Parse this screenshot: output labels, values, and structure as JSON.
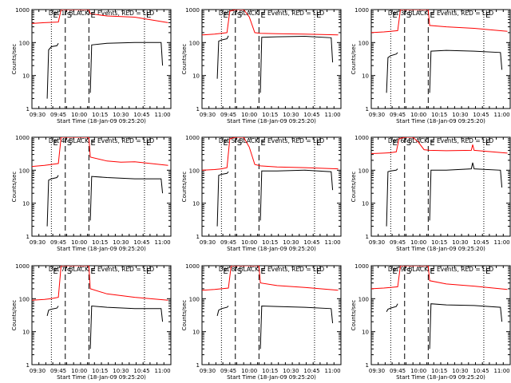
{
  "chart_data": [
    {
      "type": "line",
      "title": "Det 1f BLACK = Events, RED = LLD",
      "xlabel": "Start Time (18-Jan-09 09:25:20)",
      "ylabel": "Counts/sec",
      "yscale": "log",
      "ylim": [
        1,
        1000
      ],
      "x_range": [
        "09:26",
        "11:06"
      ],
      "x_ticks": [
        "09:30",
        "09:45",
        "10:00",
        "10:15",
        "10:30",
        "10:45",
        "11:00"
      ],
      "y_ticks": [
        "1",
        "10",
        "100",
        "1000"
      ],
      "markers": [
        {
          "label": "E",
          "time": "09:40",
          "style": "dotted"
        },
        {
          "label": "S",
          "time": "09:50",
          "style": "dashed"
        },
        {
          "label": "E",
          "time": "10:07",
          "style": "dashed"
        },
        {
          "label": "E",
          "time": "10:47",
          "style": "dotted"
        }
      ],
      "series": [
        {
          "color": "#ff0000",
          "x": [
            "09:26",
            "09:35",
            "09:40",
            "09:45",
            "09:47",
            "09:50",
            "10:07",
            "10:08",
            "10:20",
            "10:40",
            "11:04"
          ],
          "y": [
            380,
            400,
            410,
            420,
            1000,
            1000,
            1000,
            750,
            640,
            590,
            400
          ]
        },
        {
          "color": "#000000",
          "x": [
            "09:37",
            "09:38",
            "09:40",
            "09:44",
            "09:45",
            "09:50",
            "10:08",
            "10:09",
            "10:20",
            "10:40",
            "10:59",
            "11:00"
          ],
          "y": [
            2,
            60,
            75,
            80,
            95,
            null,
            3,
            85,
            95,
            100,
            100,
            20
          ]
        }
      ]
    },
    {
      "type": "line",
      "title": "Det 2f BLACK = Events, RED = LLD",
      "xlabel": "Start Time (18-Jan-09 09:25:20)",
      "ylabel": "Counts/sec",
      "yscale": "log",
      "ylim": [
        1,
        1000
      ],
      "x_range": [
        "09:26",
        "11:06"
      ],
      "x_ticks": [
        "09:30",
        "09:45",
        "10:00",
        "10:15",
        "10:30",
        "10:45",
        "11:00"
      ],
      "y_ticks": [
        "1",
        "10",
        "100",
        "1000"
      ],
      "markers": [
        {
          "label": "E",
          "time": "09:40",
          "style": "dotted"
        },
        {
          "label": "S",
          "time": "09:50",
          "style": "dashed"
        },
        {
          "label": "E",
          "time": "10:07",
          "style": "dashed"
        },
        {
          "label": "E",
          "time": "10:47",
          "style": "dotted"
        }
      ],
      "series": [
        {
          "color": "#ff0000",
          "x": [
            "09:26",
            "09:35",
            "09:40",
            "09:44",
            "09:46",
            "09:50",
            "09:56",
            "10:00",
            "10:04",
            "10:08",
            "10:20",
            "10:40",
            "11:04"
          ],
          "y": [
            170,
            180,
            190,
            200,
            900,
            1000,
            1000,
            600,
            200,
            190,
            185,
            180,
            170
          ]
        },
        {
          "color": "#000000",
          "x": [
            "09:37",
            "09:38",
            "09:40",
            "09:44",
            "09:45",
            "09:50",
            "10:08",
            "10:09",
            "10:20",
            "10:40",
            "10:59",
            "11:00"
          ],
          "y": [
            8,
            110,
            120,
            130,
            160,
            null,
            3,
            145,
            150,
            155,
            140,
            25
          ]
        }
      ]
    },
    {
      "type": "line",
      "title": "Det 3f BLACK = Events, RED = LLD",
      "xlabel": "Start Time (18-Jan-09 09:25:20)",
      "ylabel": "Counts/sec",
      "yscale": "log",
      "ylim": [
        1,
        1000
      ],
      "x_range": [
        "09:26",
        "11:06"
      ],
      "x_ticks": [
        "09:30",
        "09:45",
        "10:00",
        "10:15",
        "10:30",
        "10:45",
        "11:00"
      ],
      "y_ticks": [
        "1",
        "10",
        "100",
        "1000"
      ],
      "markers": [
        {
          "label": "E",
          "time": "09:40",
          "style": "dotted"
        },
        {
          "label": "S",
          "time": "09:50",
          "style": "dashed"
        },
        {
          "label": "E",
          "time": "10:07",
          "style": "dashed"
        },
        {
          "label": "E",
          "time": "10:47",
          "style": "dotted"
        }
      ],
      "series": [
        {
          "color": "#ff0000",
          "x": [
            "09:26",
            "09:35",
            "09:40",
            "09:45",
            "09:47",
            "09:50",
            "10:07",
            "10:08",
            "10:20",
            "10:40",
            "11:04"
          ],
          "y": [
            200,
            210,
            220,
            230,
            1000,
            1000,
            1000,
            330,
            300,
            270,
            220
          ]
        },
        {
          "color": "#000000",
          "x": [
            "09:37",
            "09:38",
            "09:40",
            "09:44",
            "09:45",
            "09:50",
            "10:08",
            "10:09",
            "10:20",
            "10:40",
            "10:59",
            "11:00"
          ],
          "y": [
            3,
            35,
            40,
            45,
            50,
            null,
            3,
            55,
            58,
            55,
            50,
            15
          ]
        }
      ]
    },
    {
      "type": "line",
      "title": "Det 4f BLACK = Events, RED = LLD",
      "xlabel": "Start Time (18-Jan-09 09:25:20)",
      "ylabel": "Counts/sec",
      "yscale": "log",
      "ylim": [
        1,
        1000
      ],
      "x_range": [
        "09:26",
        "11:06"
      ],
      "x_ticks": [
        "09:30",
        "09:45",
        "10:00",
        "10:15",
        "10:30",
        "10:45",
        "11:00"
      ],
      "y_ticks": [
        "1",
        "10",
        "100",
        "1000"
      ],
      "markers": [
        {
          "label": "E",
          "time": "09:40",
          "style": "dotted"
        },
        {
          "label": "S",
          "time": "09:50",
          "style": "dashed"
        },
        {
          "label": "E",
          "time": "10:07",
          "style": "dashed"
        },
        {
          "label": "E",
          "time": "10:47",
          "style": "dotted"
        }
      ],
      "series": [
        {
          "color": "#ff0000",
          "x": [
            "09:26",
            "09:35",
            "09:40",
            "09:45",
            "09:47",
            "09:50",
            "10:07",
            "10:08",
            "10:20",
            "10:30",
            "10:40",
            "11:04"
          ],
          "y": [
            130,
            140,
            150,
            160,
            1000,
            1000,
            1000,
            250,
            190,
            175,
            180,
            140
          ]
        },
        {
          "color": "#000000",
          "x": [
            "09:37",
            "09:38",
            "09:40",
            "09:44",
            "09:45",
            "09:50",
            "10:08",
            "10:09",
            "10:20",
            "10:40",
            "10:59",
            "11:00"
          ],
          "y": [
            2,
            50,
            55,
            60,
            70,
            null,
            3,
            65,
            60,
            55,
            55,
            20
          ]
        }
      ]
    },
    {
      "type": "line",
      "title": "Det 5f BLACK = Events, RED = LLD",
      "xlabel": "Start Time (18-Jan-09 09:25:20)",
      "ylabel": "Counts/sec",
      "yscale": "log",
      "ylim": [
        1,
        1000
      ],
      "x_range": [
        "09:26",
        "11:06"
      ],
      "x_ticks": [
        "09:30",
        "09:45",
        "10:00",
        "10:15",
        "10:30",
        "10:45",
        "11:00"
      ],
      "y_ticks": [
        "1",
        "10",
        "100",
        "1000"
      ],
      "markers": [
        {
          "label": "E",
          "time": "09:40",
          "style": "dotted"
        },
        {
          "label": "S",
          "time": "09:50",
          "style": "dashed"
        },
        {
          "label": "E",
          "time": "10:07",
          "style": "dashed"
        },
        {
          "label": "E",
          "time": "10:47",
          "style": "dotted"
        }
      ],
      "series": [
        {
          "color": "#ff0000",
          "x": [
            "09:26",
            "09:35",
            "09:40",
            "09:44",
            "09:46",
            "09:50",
            "09:56",
            "10:00",
            "10:04",
            "10:08",
            "10:20",
            "10:40",
            "11:04"
          ],
          "y": [
            100,
            105,
            110,
            120,
            900,
            1000,
            1000,
            500,
            150,
            135,
            125,
            120,
            110
          ]
        },
        {
          "color": "#000000",
          "x": [
            "09:37",
            "09:38",
            "09:40",
            "09:44",
            "09:45",
            "09:50",
            "10:08",
            "10:09",
            "10:20",
            "10:40",
            "10:59",
            "11:00"
          ],
          "y": [
            2,
            70,
            75,
            80,
            90,
            null,
            3,
            95,
            95,
            100,
            90,
            25
          ]
        }
      ]
    },
    {
      "type": "line",
      "title": "Det 6f BLACK = Events, RED = LLD",
      "xlabel": "Start Time (18-Jan-09 09:25:20)",
      "ylabel": "Counts/sec",
      "yscale": "log",
      "ylim": [
        1,
        1000
      ],
      "x_range": [
        "09:26",
        "11:06"
      ],
      "x_ticks": [
        "09:30",
        "09:45",
        "10:00",
        "10:15",
        "10:30",
        "10:45",
        "11:00"
      ],
      "y_ticks": [
        "1",
        "10",
        "100",
        "1000"
      ],
      "markers": [
        {
          "label": "E",
          "time": "09:40",
          "style": "dotted"
        },
        {
          "label": "S",
          "time": "09:50",
          "style": "dashed"
        },
        {
          "label": "E",
          "time": "10:07",
          "style": "dashed"
        },
        {
          "label": "E",
          "time": "10:47",
          "style": "dotted"
        }
      ],
      "series": [
        {
          "color": "#ff0000",
          "x": [
            "09:26",
            "09:35",
            "09:40",
            "09:44",
            "09:46",
            "09:50",
            "09:56",
            "10:00",
            "10:04",
            "10:08",
            "10:20",
            "10:38",
            "10:39",
            "10:40",
            "11:04"
          ],
          "y": [
            320,
            330,
            340,
            360,
            900,
            1000,
            1000,
            700,
            420,
            400,
            390,
            400,
            600,
            400,
            330
          ]
        },
        {
          "color": "#000000",
          "x": [
            "09:37",
            "09:38",
            "09:40",
            "09:44",
            "09:45",
            "09:50",
            "10:08",
            "10:09",
            "10:20",
            "10:38",
            "10:39",
            "10:40",
            "10:59",
            "11:00"
          ],
          "y": [
            2,
            90,
            95,
            100,
            110,
            null,
            3,
            100,
            100,
            110,
            170,
            110,
            100,
            30
          ]
        }
      ]
    },
    {
      "type": "line",
      "title": "Det 7f BLACK = Events, RED = LLD",
      "xlabel": "Start Time (18-Jan-09 09:25:20)",
      "ylabel": "Counts/sec",
      "yscale": "log",
      "ylim": [
        1,
        1000
      ],
      "x_range": [
        "09:26",
        "11:06"
      ],
      "x_ticks": [
        "09:30",
        "09:45",
        "10:00",
        "10:15",
        "10:30",
        "10:45",
        "11:00"
      ],
      "y_ticks": [
        "1",
        "10",
        "100",
        "1000"
      ],
      "markers": [
        {
          "label": "E",
          "time": "09:40",
          "style": "dotted"
        },
        {
          "label": "S",
          "time": "09:50",
          "style": "dashed"
        },
        {
          "label": "E",
          "time": "10:07",
          "style": "dashed"
        },
        {
          "label": "E",
          "time": "10:47",
          "style": "dotted"
        }
      ],
      "series": [
        {
          "color": "#ff0000",
          "x": [
            "09:26",
            "09:35",
            "09:40",
            "09:45",
            "09:47",
            "09:50",
            "10:07",
            "10:08",
            "10:20",
            "10:40",
            "11:04"
          ],
          "y": [
            90,
            95,
            100,
            110,
            1000,
            1000,
            1000,
            200,
            140,
            110,
            90
          ]
        },
        {
          "color": "#000000",
          "x": [
            "09:37",
            "09:38",
            "09:40",
            "09:44",
            "09:45",
            "09:50",
            "10:08",
            "10:09",
            "10:20",
            "10:40",
            "10:59",
            "11:00"
          ],
          "y": [
            30,
            45,
            48,
            52,
            60,
            null,
            3,
            60,
            55,
            50,
            50,
            20
          ]
        }
      ]
    },
    {
      "type": "line",
      "title": "Det 8f BLACK = Events, RED = LLD",
      "xlabel": "Start Time (18-Jan-09 09:25:20)",
      "ylabel": "Counts/sec",
      "yscale": "log",
      "ylim": [
        1,
        1000
      ],
      "x_range": [
        "09:26",
        "11:06"
      ],
      "x_ticks": [
        "09:30",
        "09:45",
        "10:00",
        "10:15",
        "10:30",
        "10:45",
        "11:00"
      ],
      "y_ticks": [
        "1",
        "10",
        "100",
        "1000"
      ],
      "markers": [
        {
          "label": "E",
          "time": "09:40",
          "style": "dotted"
        },
        {
          "label": "S",
          "time": "09:50",
          "style": "dashed"
        },
        {
          "label": "E",
          "time": "10:07",
          "style": "dashed"
        },
        {
          "label": "E",
          "time": "10:47",
          "style": "dotted"
        }
      ],
      "series": [
        {
          "color": "#ff0000",
          "x": [
            "09:26",
            "09:35",
            "09:40",
            "09:45",
            "09:47",
            "09:50",
            "10:07",
            "10:08",
            "10:20",
            "10:40",
            "11:04"
          ],
          "y": [
            180,
            190,
            200,
            210,
            1000,
            1000,
            1000,
            300,
            250,
            220,
            180
          ]
        },
        {
          "color": "#000000",
          "x": [
            "09:37",
            "09:38",
            "09:40",
            "09:44",
            "09:45",
            "09:50",
            "10:08",
            "10:09",
            "10:20",
            "10:40",
            "10:59",
            "11:00"
          ],
          "y": [
            30,
            45,
            50,
            55,
            60,
            null,
            3,
            60,
            58,
            55,
            50,
            18
          ]
        }
      ]
    },
    {
      "type": "line",
      "title": "Det 9f BLACK = Events, RED = LLD",
      "xlabel": "Start Time (18-Jan-09 09:25:20)",
      "ylabel": "Counts/sec",
      "yscale": "log",
      "ylim": [
        1,
        1000
      ],
      "x_range": [
        "09:26",
        "11:06"
      ],
      "x_ticks": [
        "09:30",
        "09:45",
        "10:00",
        "10:15",
        "10:30",
        "10:45",
        "11:00"
      ],
      "y_ticks": [
        "1",
        "10",
        "100",
        "1000"
      ],
      "markers": [
        {
          "label": "E",
          "time": "09:40",
          "style": "dotted"
        },
        {
          "label": "S",
          "time": "09:50",
          "style": "dashed"
        },
        {
          "label": "E",
          "time": "10:07",
          "style": "dashed"
        },
        {
          "label": "E",
          "time": "10:47",
          "style": "dotted"
        }
      ],
      "series": [
        {
          "color": "#ff0000",
          "x": [
            "09:26",
            "09:35",
            "09:40",
            "09:45",
            "09:47",
            "09:50",
            "10:07",
            "10:08",
            "10:20",
            "10:40",
            "11:04"
          ],
          "y": [
            200,
            210,
            220,
            230,
            1000,
            1000,
            1000,
            350,
            280,
            240,
            190
          ]
        },
        {
          "color": "#000000",
          "x": [
            "09:37",
            "09:38",
            "09:40",
            "09:44",
            "09:45",
            "09:50",
            "10:08",
            "10:09",
            "10:20",
            "10:40",
            "10:59",
            "11:00"
          ],
          "y": [
            40,
            48,
            52,
            58,
            70,
            null,
            3,
            70,
            65,
            62,
            55,
            20
          ]
        }
      ]
    }
  ]
}
